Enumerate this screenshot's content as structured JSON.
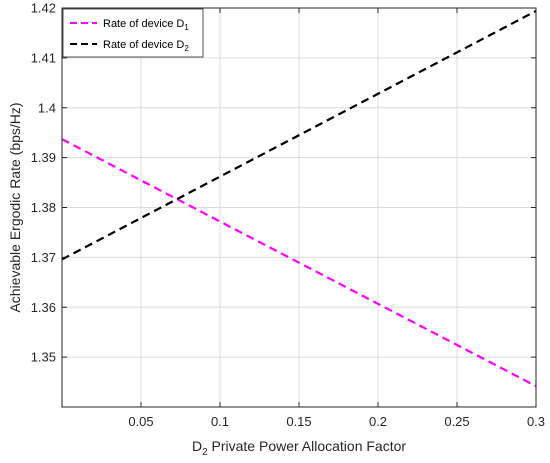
{
  "chart_data": {
    "type": "line",
    "xlabel": {
      "main": "D",
      "sub": "2",
      "rest": " Private Power Allocation Factor"
    },
    "ylabel": "Achievable Ergodic Rate (bps/Hz)",
    "xlim": [
      0,
      0.3
    ],
    "ylim": [
      1.34,
      1.42
    ],
    "xticks": [
      0.05,
      0.1,
      0.15,
      0.2,
      0.25,
      0.3
    ],
    "xtick_labels": [
      "0.05",
      "0.1",
      "0.15",
      "0.2",
      "0.25",
      "0.3"
    ],
    "yticks": [
      1.35,
      1.36,
      1.37,
      1.38,
      1.39,
      1.4,
      1.41,
      1.42
    ],
    "ytick_labels": [
      "1.35",
      "1.36",
      "1.37",
      "1.38",
      "1.39",
      "1.4",
      "1.41",
      "1.42"
    ],
    "grid": true,
    "legend_position": "top-left",
    "series": [
      {
        "name": "Rate of device D",
        "name_sub": "1",
        "color": "#ff00ff",
        "dash": "dashed",
        "x": [
          0,
          0.3
        ],
        "y": [
          1.3937,
          1.3442
        ]
      },
      {
        "name": "Rate of device D",
        "name_sub": "2",
        "color": "#000000",
        "dash": "dashed",
        "x": [
          0,
          0.3
        ],
        "y": [
          1.3696,
          1.4194
        ]
      }
    ]
  }
}
